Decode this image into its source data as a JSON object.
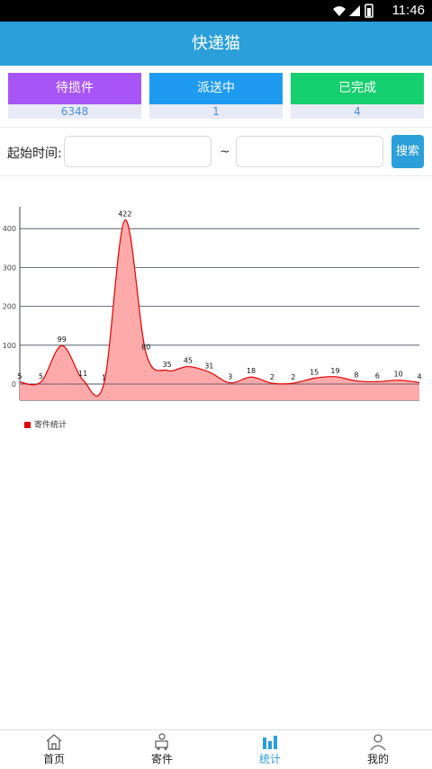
{
  "status_bar": {
    "time": "11:46"
  },
  "app_bar": {
    "title": "快递猫"
  },
  "stats": [
    {
      "label": "待揽件",
      "value": "6348",
      "color": "#a855f7"
    },
    {
      "label": "派送中",
      "value": "1",
      "color": "#1e9bf0"
    },
    {
      "label": "已完成",
      "value": "4",
      "color": "#16cf6e"
    }
  ],
  "search": {
    "label": "起始时间:",
    "start_value": "",
    "end_value": "",
    "separator": "~",
    "button_label": "搜索"
  },
  "chart_data": {
    "type": "area",
    "y_ticks": [
      "400",
      "300",
      "200",
      "100",
      "0"
    ],
    "ylim": [
      0,
      430
    ],
    "values": [
      5,
      5,
      99,
      11,
      1,
      422,
      80,
      35,
      45,
      31,
      3,
      18,
      2,
      2,
      15,
      19,
      8,
      6,
      10,
      4
    ],
    "legend": "寄件统计",
    "color": "#e30000",
    "fill": "#ffaaaa"
  },
  "tabs": [
    {
      "label": "首页",
      "icon": "home-icon"
    },
    {
      "label": "寄件",
      "icon": "courier-icon"
    },
    {
      "label": "统计",
      "icon": "bar-chart-icon",
      "active": true
    },
    {
      "label": "我的",
      "icon": "person-icon"
    }
  ]
}
